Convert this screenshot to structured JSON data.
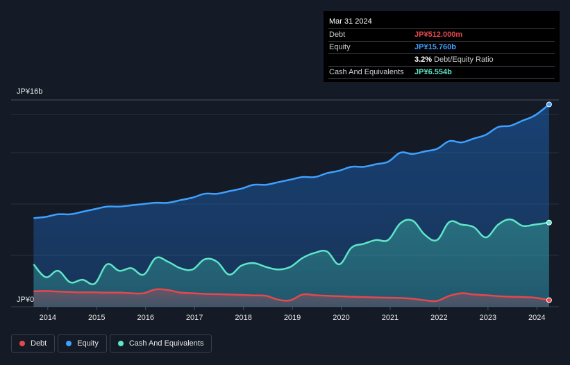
{
  "tooltip": {
    "date": "Mar 31 2024",
    "rows": {
      "debt": {
        "label": "Debt",
        "value": "JP¥512.000m"
      },
      "equity": {
        "label": "Equity",
        "value": "JP¥15.760b"
      },
      "ratio": {
        "value": "3.2%",
        "label": "Debt/Equity Ratio"
      },
      "cash": {
        "label": "Cash And Equivalents",
        "value": "JP¥6.554b"
      }
    }
  },
  "legend": {
    "debt": "Debt",
    "equity": "Equity",
    "cash": "Cash And Equivalents"
  },
  "colors": {
    "debt": "#e5484d",
    "equity": "#3ea0ff",
    "cash": "#5ee6c8",
    "background": "#151b26",
    "grid": "#2c323c"
  },
  "chart_data": {
    "type": "area",
    "title": "",
    "xlabel": "",
    "ylabel": "",
    "y_unit": "JP¥ billions",
    "ylim": [
      0,
      16
    ],
    "y_tick_labels": [
      "JP¥0",
      "JP¥16b"
    ],
    "x_tick_labels": [
      "2014",
      "2015",
      "2016",
      "2017",
      "2018",
      "2019",
      "2020",
      "2021",
      "2022",
      "2023",
      "2024"
    ],
    "x_ticks": [
      2014,
      2015,
      2016,
      2017,
      2018,
      2019,
      2020,
      2021,
      2022,
      2023,
      2024
    ],
    "xlim": [
      2013.25,
      2024.45
    ],
    "legend_position": "bottom-left",
    "series": [
      {
        "name": "Equity",
        "x": [
          2013.71,
          2013.96,
          2014.21,
          2014.46,
          2014.71,
          2014.96,
          2015.21,
          2015.46,
          2015.71,
          2015.96,
          2016.21,
          2016.46,
          2016.71,
          2016.96,
          2017.21,
          2017.46,
          2017.71,
          2017.96,
          2018.21,
          2018.46,
          2018.71,
          2018.96,
          2019.21,
          2019.46,
          2019.71,
          2019.96,
          2020.21,
          2020.46,
          2020.71,
          2020.96,
          2021.21,
          2021.46,
          2021.71,
          2021.96,
          2022.21,
          2022.46,
          2022.71,
          2022.96,
          2023.21,
          2023.46,
          2023.71,
          2023.96,
          2024.25
        ],
        "values": [
          6.9,
          7.0,
          7.2,
          7.2,
          7.4,
          7.6,
          7.8,
          7.8,
          7.9,
          8.0,
          8.1,
          8.1,
          8.3,
          8.5,
          8.8,
          8.8,
          9.0,
          9.2,
          9.5,
          9.5,
          9.7,
          9.9,
          10.1,
          10.1,
          10.4,
          10.6,
          10.9,
          10.9,
          11.1,
          11.3,
          12.0,
          11.9,
          12.1,
          12.3,
          12.9,
          12.8,
          13.1,
          13.4,
          14.0,
          14.1,
          14.5,
          14.9,
          15.76
        ]
      },
      {
        "name": "Cash And Equivalents",
        "x": [
          2013.71,
          2013.96,
          2014.21,
          2014.46,
          2014.71,
          2014.96,
          2015.21,
          2015.46,
          2015.71,
          2015.96,
          2016.21,
          2016.46,
          2016.71,
          2016.96,
          2017.21,
          2017.46,
          2017.71,
          2017.96,
          2018.21,
          2018.46,
          2018.71,
          2018.96,
          2019.21,
          2019.46,
          2019.71,
          2019.96,
          2020.21,
          2020.46,
          2020.71,
          2020.96,
          2021.21,
          2021.46,
          2021.71,
          2021.96,
          2022.21,
          2022.46,
          2022.71,
          2022.96,
          2023.21,
          2023.46,
          2023.71,
          2023.96,
          2024.25
        ],
        "values": [
          3.3,
          2.3,
          2.8,
          1.9,
          2.1,
          1.8,
          3.3,
          2.8,
          3.0,
          2.5,
          3.8,
          3.5,
          3.0,
          2.9,
          3.7,
          3.5,
          2.5,
          3.2,
          3.4,
          3.1,
          2.9,
          3.1,
          3.8,
          4.2,
          4.3,
          3.3,
          4.6,
          4.9,
          5.2,
          5.2,
          6.5,
          6.7,
          5.6,
          5.2,
          6.6,
          6.4,
          6.2,
          5.4,
          6.4,
          6.8,
          6.3,
          6.4,
          6.554
        ]
      },
      {
        "name": "Debt",
        "x": [
          2013.71,
          2013.96,
          2014.21,
          2014.46,
          2014.71,
          2014.96,
          2015.21,
          2015.46,
          2015.71,
          2015.96,
          2016.21,
          2016.46,
          2016.71,
          2016.96,
          2017.21,
          2017.46,
          2017.71,
          2017.96,
          2018.21,
          2018.46,
          2018.71,
          2018.96,
          2019.21,
          2019.46,
          2019.71,
          2019.96,
          2020.21,
          2020.46,
          2020.71,
          2020.96,
          2021.21,
          2021.46,
          2021.71,
          2021.96,
          2022.21,
          2022.46,
          2022.71,
          2022.96,
          2023.21,
          2023.46,
          2023.71,
          2023.96,
          2024.25
        ],
        "values": [
          1.2,
          1.22,
          1.18,
          1.15,
          1.12,
          1.12,
          1.1,
          1.1,
          1.05,
          1.05,
          1.35,
          1.3,
          1.1,
          1.05,
          1.0,
          0.98,
          0.95,
          0.92,
          0.88,
          0.85,
          0.55,
          0.5,
          0.95,
          0.9,
          0.85,
          0.82,
          0.78,
          0.75,
          0.72,
          0.7,
          0.68,
          0.62,
          0.5,
          0.45,
          0.85,
          1.05,
          0.95,
          0.9,
          0.82,
          0.78,
          0.75,
          0.7,
          0.512
        ]
      }
    ]
  }
}
